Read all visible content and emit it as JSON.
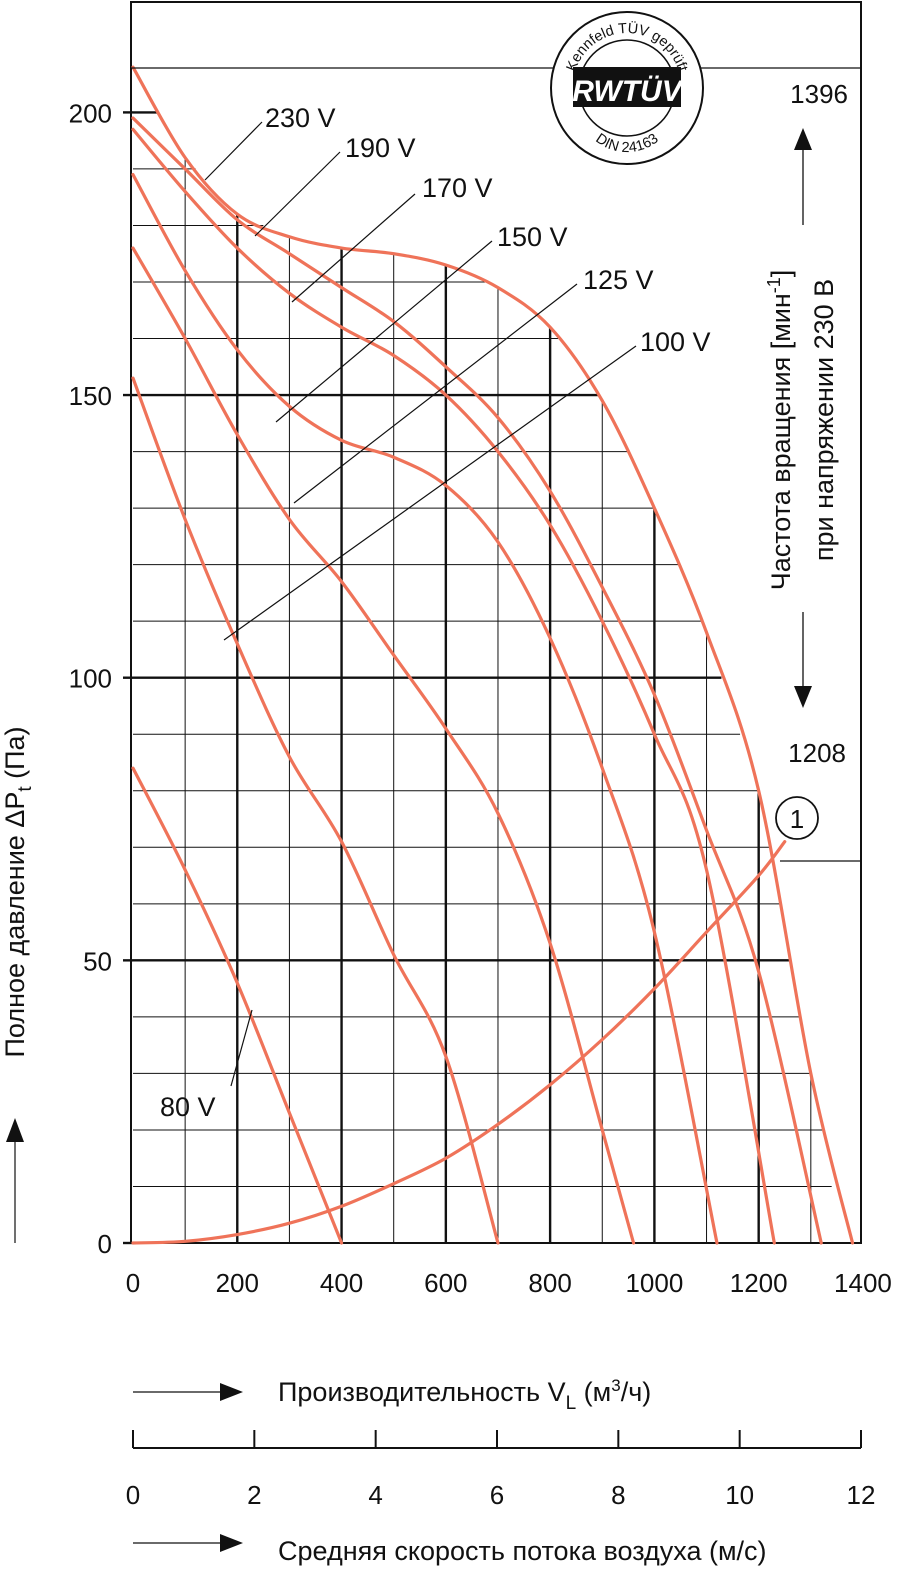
{
  "chart_data": {
    "type": "line",
    "xlabel": "Производительность V",
    "xlabel_sub": "L",
    "xlabel_unit": " (м",
    "xlabel_unit_sup": "3",
    "xlabel_unit_end": "/ч)",
    "x2label": "Средняя скорость потока воздуха (м/с)",
    "ylabel": "Полное давление ΔP",
    "ylabel_sub": "t",
    "ylabel_unit": " (Па)",
    "right_label_line1_a": "Частота вращения [мин",
    "right_label_line1_sup": "-1",
    "right_label_line1_b": "]",
    "right_label_line2": "при напряжении 230 В",
    "rpm_max": "1396",
    "rpm_min": "1208",
    "xlim": [
      0,
      1400
    ],
    "ylim": [
      0,
      200
    ],
    "x_ticks": [
      "0",
      "200",
      "400",
      "600",
      "800",
      "1000",
      "1200",
      "1400"
    ],
    "y_ticks": [
      "0",
      "50",
      "100",
      "150",
      "200"
    ],
    "x2lim": [
      0,
      12
    ],
    "x2_ticks": [
      "0",
      "2",
      "4",
      "6",
      "8",
      "10",
      "12"
    ],
    "grid": true,
    "logo": {
      "ring_text_top": "Kennfeld TÜV geprüft",
      "main": "RWTÜV",
      "ring_text_bottom": "DIN 24163"
    },
    "series": [
      {
        "name": "230 V",
        "x": [
          0,
          100,
          200,
          300,
          400,
          500,
          600,
          700,
          800,
          900,
          1000,
          1100,
          1200,
          1300,
          1380
        ],
        "y": [
          208,
          192,
          182,
          178,
          176,
          175,
          173,
          169,
          162,
          149,
          130,
          108,
          80,
          30,
          0
        ]
      },
      {
        "name": "190 V",
        "x": [
          0,
          100,
          200,
          300,
          400,
          500,
          600,
          700,
          800,
          900,
          1000,
          1100,
          1200,
          1320
        ],
        "y": [
          199,
          190,
          181,
          175,
          169,
          163,
          155,
          146,
          133,
          116,
          97,
          73,
          48,
          0
        ]
      },
      {
        "name": "170 V",
        "x": [
          0,
          100,
          200,
          300,
          400,
          500,
          600,
          700,
          800,
          900,
          1000,
          1100,
          1230
        ],
        "y": [
          197,
          186,
          176,
          168,
          162,
          157,
          150,
          140,
          127,
          110,
          90,
          66,
          0
        ]
      },
      {
        "name": "150 V",
        "x": [
          0,
          100,
          200,
          300,
          400,
          500,
          600,
          700,
          800,
          900,
          1000,
          1120
        ],
        "y": [
          189,
          172,
          158,
          148,
          142,
          139,
          134,
          124,
          107,
          84,
          55,
          0
        ]
      },
      {
        "name": "125 V",
        "x": [
          0,
          100,
          200,
          300,
          400,
          500,
          600,
          700,
          800,
          900,
          960
        ],
        "y": [
          176,
          160,
          143,
          128,
          117,
          104,
          91,
          76,
          53,
          20,
          0
        ]
      },
      {
        "name": "100 V",
        "x": [
          0,
          100,
          200,
          300,
          400,
          500,
          600,
          700
        ],
        "y": [
          153,
          128,
          106,
          86,
          71,
          51,
          33,
          0
        ]
      },
      {
        "name": "80 V",
        "x": [
          0,
          100,
          200,
          300,
          400
        ],
        "y": [
          84,
          66,
          46,
          23,
          0
        ]
      },
      {
        "name": "1",
        "x": [
          0,
          100,
          200,
          300,
          400,
          500,
          600,
          700,
          800,
          900,
          1000,
          1100,
          1200,
          1250
        ],
        "y": [
          0,
          0.3,
          1.5,
          3.5,
          6.5,
          10.5,
          15,
          21,
          28,
          36,
          45,
          55,
          65,
          71
        ]
      }
    ],
    "annotations": [
      "230 V",
      "190 V",
      "170 V",
      "150 V",
      "125 V",
      "100 V",
      "80 V",
      "1"
    ]
  }
}
